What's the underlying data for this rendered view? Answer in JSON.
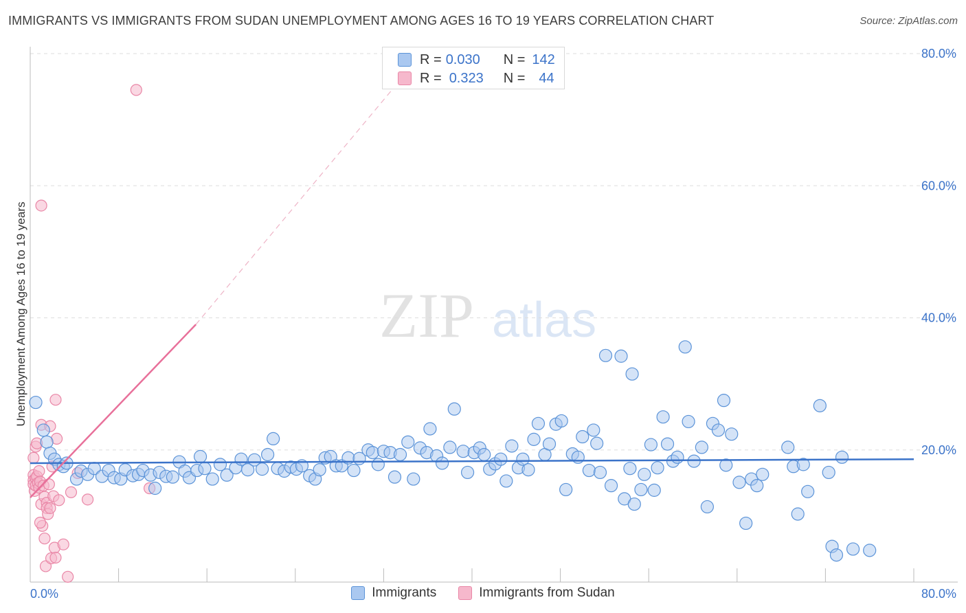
{
  "header": {
    "title": "IMMIGRANTS VS IMMIGRANTS FROM SUDAN UNEMPLOYMENT AMONG AGES 16 TO 19 YEARS CORRELATION CHART",
    "source_prefix": "Source: ",
    "source_name": "ZipAtlas.com"
  },
  "watermark": {
    "part1": "ZIP",
    "part2": "atlas"
  },
  "colors": {
    "blue_fill": "#aac8f0",
    "blue_stroke": "#5b93d8",
    "blue_line": "#3b73c9",
    "pink_fill": "#f6b8cc",
    "pink_stroke": "#e986a6",
    "pink_line": "#e8709a",
    "axis_text": "#3b73c9",
    "grid": "#dddddd"
  },
  "legend_top": {
    "rows": [
      {
        "r_label": "R =",
        "r_value": "0.030",
        "n_label": "N =",
        "n_value": "142",
        "series": "blue"
      },
      {
        "r_label": "R =",
        "r_value": "0.323",
        "n_label": "N =",
        "n_value": "44",
        "series": "pink"
      }
    ]
  },
  "legend_bottom": {
    "items": [
      {
        "label": "Immigrants",
        "series": "blue"
      },
      {
        "label": "Immigrants from Sudan",
        "series": "pink"
      }
    ]
  },
  "chart_data": {
    "type": "scatter",
    "title": "IMMIGRANTS VS IMMIGRANTS FROM SUDAN UNEMPLOYMENT AMONG AGES 16 TO 19 YEARS CORRELATION CHART",
    "xlabel": "",
    "ylabel": "Unemployment Among Ages 16 to 19 years",
    "xlim": [
      0,
      80
    ],
    "ylim": [
      0,
      80
    ],
    "x_tick_labels": {
      "left": "0.0%",
      "right": "80.0%"
    },
    "y_ticks": [
      {
        "value": 20,
        "label": "20.0%"
      },
      {
        "value": 40,
        "label": "40.0%"
      },
      {
        "value": 60,
        "label": "60.0%"
      },
      {
        "value": 80,
        "label": "80.0%"
      }
    ],
    "series": [
      {
        "name": "Immigrants",
        "color": "blue",
        "r": 0.03,
        "n": 142,
        "trend": {
          "x0": 0,
          "y0": 18.0,
          "x1": 80,
          "y1": 18.6,
          "dashed_to": null
        },
        "points": [
          [
            0.5,
            27.2
          ],
          [
            1.2,
            23.0
          ],
          [
            1.5,
            21.2
          ],
          [
            1.8,
            19.5
          ],
          [
            2.2,
            18.6
          ],
          [
            2.6,
            17.8
          ],
          [
            3.0,
            17.5
          ],
          [
            3.3,
            18.0
          ],
          [
            4.2,
            15.6
          ],
          [
            4.6,
            16.8
          ],
          [
            5.2,
            16.3
          ],
          [
            5.8,
            17.2
          ],
          [
            6.5,
            16.0
          ],
          [
            7.1,
            16.9
          ],
          [
            7.6,
            15.8
          ],
          [
            8.2,
            15.6
          ],
          [
            8.6,
            17.0
          ],
          [
            9.3,
            16.1
          ],
          [
            9.8,
            16.3
          ],
          [
            10.2,
            16.9
          ],
          [
            10.9,
            16.2
          ],
          [
            11.3,
            14.2
          ],
          [
            11.7,
            16.6
          ],
          [
            12.3,
            16.0
          ],
          [
            12.9,
            15.9
          ],
          [
            13.5,
            18.2
          ],
          [
            14.0,
            16.8
          ],
          [
            14.4,
            15.8
          ],
          [
            15.1,
            16.9
          ],
          [
            15.4,
            19.0
          ],
          [
            15.8,
            17.2
          ],
          [
            16.5,
            15.6
          ],
          [
            17.2,
            17.8
          ],
          [
            17.8,
            16.2
          ],
          [
            18.6,
            17.3
          ],
          [
            19.1,
            18.6
          ],
          [
            19.7,
            17.0
          ],
          [
            20.3,
            18.5
          ],
          [
            21.0,
            17.1
          ],
          [
            21.5,
            19.3
          ],
          [
            22.0,
            21.7
          ],
          [
            22.4,
            17.2
          ],
          [
            23.0,
            16.8
          ],
          [
            23.6,
            17.4
          ],
          [
            24.1,
            17.1
          ],
          [
            24.6,
            17.6
          ],
          [
            25.3,
            16.1
          ],
          [
            25.8,
            15.6
          ],
          [
            26.2,
            17.0
          ],
          [
            26.7,
            18.8
          ],
          [
            27.2,
            19.0
          ],
          [
            27.7,
            17.6
          ],
          [
            28.2,
            17.6
          ],
          [
            28.8,
            18.8
          ],
          [
            29.3,
            16.9
          ],
          [
            29.8,
            18.7
          ],
          [
            30.6,
            20.0
          ],
          [
            31.0,
            19.6
          ],
          [
            31.5,
            17.8
          ],
          [
            32.0,
            19.8
          ],
          [
            32.6,
            19.6
          ],
          [
            33.0,
            15.9
          ],
          [
            33.5,
            19.3
          ],
          [
            34.2,
            21.2
          ],
          [
            34.7,
            15.6
          ],
          [
            35.3,
            20.3
          ],
          [
            35.9,
            19.6
          ],
          [
            36.2,
            23.2
          ],
          [
            36.8,
            19.1
          ],
          [
            37.3,
            18.0
          ],
          [
            38.0,
            20.4
          ],
          [
            38.4,
            26.2
          ],
          [
            39.2,
            19.8
          ],
          [
            39.6,
            16.6
          ],
          [
            40.2,
            19.6
          ],
          [
            40.7,
            20.3
          ],
          [
            41.1,
            19.3
          ],
          [
            41.6,
            17.1
          ],
          [
            42.1,
            17.9
          ],
          [
            42.6,
            18.6
          ],
          [
            43.1,
            15.3
          ],
          [
            43.6,
            20.6
          ],
          [
            44.2,
            17.3
          ],
          [
            44.6,
            18.6
          ],
          [
            45.1,
            17.0
          ],
          [
            45.6,
            21.6
          ],
          [
            46.0,
            24.0
          ],
          [
            46.6,
            19.3
          ],
          [
            47.0,
            20.9
          ],
          [
            47.6,
            23.9
          ],
          [
            48.1,
            24.4
          ],
          [
            48.5,
            14.0
          ],
          [
            49.1,
            19.4
          ],
          [
            49.6,
            18.9
          ],
          [
            50.0,
            22.0
          ],
          [
            50.6,
            16.9
          ],
          [
            51.0,
            23.0
          ],
          [
            51.3,
            21.0
          ],
          [
            51.6,
            16.6
          ],
          [
            52.1,
            34.3
          ],
          [
            52.6,
            14.6
          ],
          [
            53.5,
            34.2
          ],
          [
            53.8,
            12.6
          ],
          [
            54.3,
            17.2
          ],
          [
            54.5,
            31.5
          ],
          [
            54.7,
            11.8
          ],
          [
            55.3,
            14.0
          ],
          [
            55.6,
            16.3
          ],
          [
            56.2,
            20.8
          ],
          [
            56.5,
            13.9
          ],
          [
            56.8,
            17.3
          ],
          [
            57.3,
            25.0
          ],
          [
            57.7,
            20.9
          ],
          [
            58.2,
            18.3
          ],
          [
            58.6,
            18.9
          ],
          [
            59.3,
            35.6
          ],
          [
            59.6,
            24.3
          ],
          [
            60.1,
            18.3
          ],
          [
            60.8,
            20.4
          ],
          [
            61.3,
            11.4
          ],
          [
            61.8,
            24.0
          ],
          [
            62.3,
            23.0
          ],
          [
            62.8,
            27.5
          ],
          [
            63.0,
            17.7
          ],
          [
            63.5,
            22.4
          ],
          [
            64.2,
            15.1
          ],
          [
            64.8,
            8.9
          ],
          [
            65.3,
            15.6
          ],
          [
            65.8,
            14.6
          ],
          [
            66.3,
            16.3
          ],
          [
            68.6,
            20.4
          ],
          [
            69.1,
            17.5
          ],
          [
            69.5,
            10.3
          ],
          [
            70.0,
            17.8
          ],
          [
            70.4,
            13.7
          ],
          [
            71.5,
            26.7
          ],
          [
            72.3,
            16.6
          ],
          [
            72.6,
            5.4
          ],
          [
            73.0,
            4.1
          ],
          [
            73.5,
            18.9
          ],
          [
            74.5,
            5.0
          ],
          [
            76.0,
            4.8
          ]
        ]
      },
      {
        "name": "Immigrants from Sudan",
        "color": "pink",
        "r": 0.323,
        "n": 44,
        "trend": {
          "x0": 0,
          "y0": 12.8,
          "x1": 15,
          "y1": 39.0,
          "dashed_to": {
            "x": 33.0,
            "y": 75.0
          }
        },
        "points": [
          [
            0.3,
            18.8
          ],
          [
            0.3,
            16.2
          ],
          [
            0.3,
            15.4
          ],
          [
            0.3,
            14.8
          ],
          [
            0.4,
            13.8
          ],
          [
            0.5,
            15.7
          ],
          [
            0.5,
            14.6
          ],
          [
            0.5,
            20.5
          ],
          [
            0.6,
            21.0
          ],
          [
            0.6,
            16.0
          ],
          [
            0.7,
            15.0
          ],
          [
            0.8,
            14.3
          ],
          [
            0.8,
            16.8
          ],
          [
            0.9,
            15.2
          ],
          [
            1.0,
            57.0
          ],
          [
            1.0,
            23.8
          ],
          [
            1.0,
            11.8
          ],
          [
            1.1,
            8.5
          ],
          [
            1.2,
            14.6
          ],
          [
            1.3,
            6.6
          ],
          [
            1.3,
            12.9
          ],
          [
            1.4,
            2.4
          ],
          [
            1.5,
            12.0
          ],
          [
            1.5,
            11.2
          ],
          [
            1.6,
            10.3
          ],
          [
            1.7,
            14.8
          ],
          [
            1.8,
            11.2
          ],
          [
            1.8,
            23.6
          ],
          [
            1.9,
            3.6
          ],
          [
            2.0,
            17.5
          ],
          [
            2.1,
            13.0
          ],
          [
            2.2,
            5.2
          ],
          [
            2.3,
            27.6
          ],
          [
            2.3,
            3.7
          ],
          [
            2.4,
            21.7
          ],
          [
            3.0,
            5.7
          ],
          [
            3.4,
            0.8
          ],
          [
            3.7,
            13.6
          ],
          [
            4.3,
            16.5
          ],
          [
            5.2,
            12.5
          ],
          [
            9.6,
            74.5
          ],
          [
            10.8,
            14.2
          ],
          [
            2.6,
            12.4
          ],
          [
            0.9,
            9.0
          ]
        ]
      }
    ]
  }
}
